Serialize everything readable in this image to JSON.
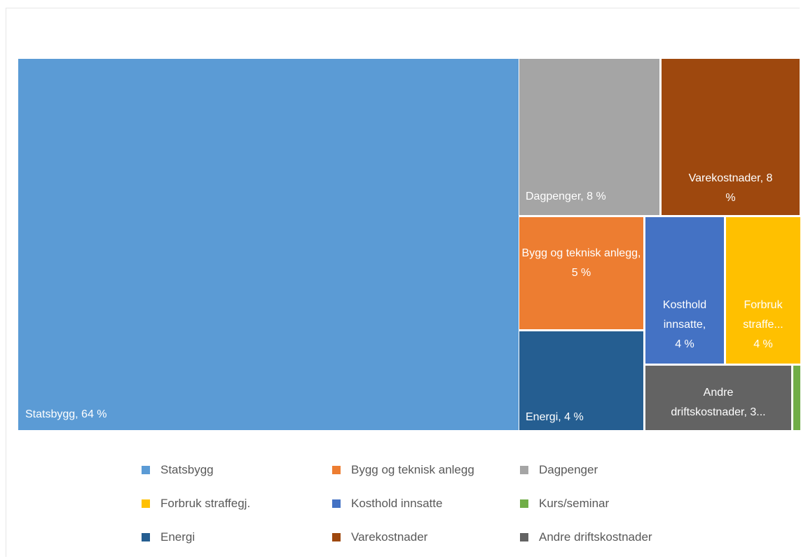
{
  "chart_data": {
    "type": "treemap",
    "unit": "%",
    "series": [
      {
        "name": "Statsbygg",
        "value": 64,
        "label": "Statsbygg, 64 %",
        "color": "#5b9bd5"
      },
      {
        "name": "Dagpenger",
        "value": 8,
        "label": "Dagpenger, 8 %",
        "color": "#a5a5a5"
      },
      {
        "name": "Varekostnader",
        "value": 8,
        "label": "Varekostnader, 8 %",
        "color": "#9e480e"
      },
      {
        "name": "Bygg og teknisk anlegg",
        "value": 5,
        "label": "Bygg og teknisk anlegg, 5 %",
        "color": "#ed7d31"
      },
      {
        "name": "Energi",
        "value": 4,
        "label": "Energi, 4 %",
        "color": "#255e91"
      },
      {
        "name": "Kosthold innsatte",
        "value": 4,
        "label": "Kosthold innsatte, 4 %",
        "color": "#4472c4"
      },
      {
        "name": "Forbruk straffegj.",
        "value": 4,
        "label": "Forbruk straffe... 4 %",
        "color": "#ffc000"
      },
      {
        "name": "Andre driftskostnader",
        "value": 3,
        "label": "Andre driftskostnader, 3...",
        "color": "#636363"
      },
      {
        "name": "Kurs/seminar",
        "value": 1,
        "label": "",
        "color": "#70ad47"
      }
    ],
    "legend": {
      "position": "bottom",
      "order": [
        "Statsbygg",
        "Bygg og teknisk anlegg",
        "Dagpenger",
        "Forbruk straffegj.",
        "Kosthold innsatte",
        "Kurs/seminar",
        "Energi",
        "Varekostnader",
        "Andre driftskostnader"
      ]
    }
  }
}
